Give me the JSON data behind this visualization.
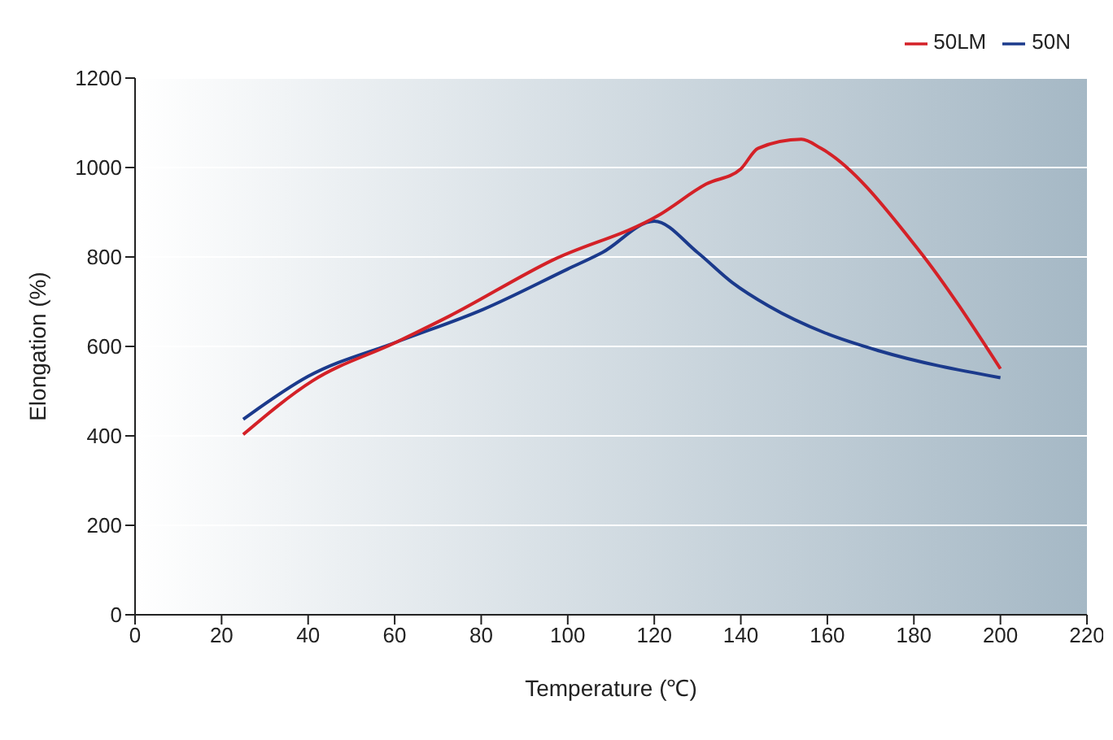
{
  "chart_data": {
    "type": "line",
    "xlabel": "Temperature (℃)",
    "ylabel": "Elongation (%)",
    "xlim": [
      0,
      220
    ],
    "xticks": [
      0,
      20,
      40,
      60,
      80,
      100,
      120,
      140,
      160,
      180,
      200,
      220
    ],
    "ylim": [
      0,
      1200
    ],
    "yticks": [
      0,
      200,
      400,
      600,
      800,
      1000,
      1200
    ],
    "grid": "y",
    "legend": "top right",
    "marker": "none",
    "line_style": "solid",
    "series": [
      {
        "name": "50N",
        "color": "#1b3a8c",
        "x": [
          25,
          40,
          60.5,
          80.5,
          100,
          108,
          120,
          130,
          138,
          146.5,
          159.5,
          172,
          200
        ],
        "values": [
          437,
          533,
          610,
          683,
          773,
          810,
          880,
          810,
          743,
          690,
          630,
          590,
          530
        ]
      },
      {
        "name": "50LM",
        "color": "#d42127",
        "x": [
          25,
          41,
          60.5,
          72.5,
          96.5,
          121,
          132,
          140,
          144,
          154,
          158.5,
          181,
          200
        ],
        "values": [
          403,
          523,
          610,
          667,
          793,
          893,
          963,
          997,
          1043,
          1063,
          1043,
          817,
          550
        ]
      }
    ]
  }
}
